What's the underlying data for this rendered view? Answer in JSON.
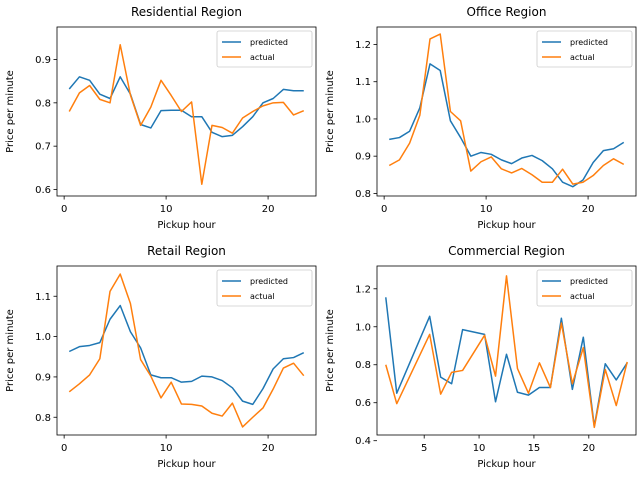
{
  "colors": {
    "predicted": "#1f77b4",
    "actual": "#ff7f0e"
  },
  "chart_data": [
    {
      "type": "line",
      "title": "Residential Region",
      "xlabel": "Pickup hour",
      "ylabel": "Price per minute",
      "xlim": [
        -0.7,
        24.7
      ],
      "ylim": [
        0.585,
        0.975
      ],
      "xticks": [
        0,
        10,
        20
      ],
      "yticks": [
        0.6,
        0.7,
        0.8,
        0.9
      ],
      "ytick_labels": [
        "0.6",
        "0.7",
        "0.8",
        "0.9"
      ],
      "legend_position": "top-right",
      "series": [
        {
          "name": "predicted",
          "color": "#1f77b4",
          "x": [
            0.5,
            1.5,
            2.5,
            3.5,
            4.5,
            5.5,
            6.5,
            7.5,
            8.5,
            9.5,
            10.5,
            11.5,
            12.5,
            13.5,
            14.5,
            15.5,
            16.5,
            17.5,
            18.5,
            19.5,
            20.5,
            21.5,
            22.5,
            23.5
          ],
          "y": [
            0.832,
            0.86,
            0.852,
            0.82,
            0.81,
            0.86,
            0.82,
            0.75,
            0.742,
            0.782,
            0.783,
            0.783,
            0.768,
            0.768,
            0.732,
            0.722,
            0.725,
            0.745,
            0.768,
            0.8,
            0.81,
            0.831,
            0.828,
            0.828
          ]
        },
        {
          "name": "actual",
          "color": "#ff7f0e",
          "x": [
            0.5,
            1.5,
            2.5,
            3.5,
            4.5,
            5.5,
            6.5,
            7.5,
            8.5,
            9.5,
            10.5,
            11.5,
            12.5,
            13.5,
            14.5,
            15.5,
            16.5,
            17.5,
            18.5,
            19.5,
            20.5,
            21.5,
            22.5,
            23.5
          ],
          "y": [
            0.78,
            0.823,
            0.84,
            0.808,
            0.8,
            0.934,
            0.818,
            0.748,
            0.79,
            0.852,
            0.817,
            0.78,
            0.802,
            0.612,
            0.748,
            0.743,
            0.73,
            0.765,
            0.78,
            0.793,
            0.8,
            0.801,
            0.772,
            0.782
          ]
        }
      ]
    },
    {
      "type": "line",
      "title": "Office Region",
      "xlabel": "Pickup hour",
      "ylabel": "Price per minute",
      "xlim": [
        -0.7,
        24.7
      ],
      "ylim": [
        0.793,
        1.247
      ],
      "xticks": [
        0,
        10,
        20
      ],
      "yticks": [
        0.8,
        0.9,
        1.0,
        1.1,
        1.2
      ],
      "ytick_labels": [
        "0.8",
        "0.9",
        "1.0",
        "1.1",
        "1.2"
      ],
      "legend_position": "top-right",
      "series": [
        {
          "name": "predicted",
          "color": "#1f77b4",
          "x": [
            0.5,
            1.5,
            2.5,
            3.5,
            4.5,
            5.5,
            6.5,
            7.5,
            8.5,
            9.5,
            10.5,
            11.5,
            12.5,
            13.5,
            14.5,
            15.5,
            16.5,
            17.5,
            18.5,
            19.5,
            20.5,
            21.5,
            22.5,
            23.5
          ],
          "y": [
            0.945,
            0.95,
            0.967,
            1.03,
            1.148,
            1.13,
            0.995,
            0.95,
            0.9,
            0.91,
            0.905,
            0.89,
            0.88,
            0.895,
            0.902,
            0.888,
            0.866,
            0.83,
            0.818,
            0.836,
            0.883,
            0.915,
            0.92,
            0.937
          ]
        },
        {
          "name": "actual",
          "color": "#ff7f0e",
          "x": [
            0.5,
            1.5,
            2.5,
            3.5,
            4.5,
            5.5,
            6.5,
            7.5,
            8.5,
            9.5,
            10.5,
            11.5,
            12.5,
            13.5,
            14.5,
            15.5,
            16.5,
            17.5,
            18.5,
            19.5,
            20.5,
            21.5,
            22.5,
            23.5
          ],
          "y": [
            0.875,
            0.89,
            0.935,
            1.01,
            1.215,
            1.228,
            1.02,
            0.995,
            0.86,
            0.885,
            0.898,
            0.866,
            0.855,
            0.867,
            0.85,
            0.83,
            0.83,
            0.865,
            0.825,
            0.83,
            0.848,
            0.875,
            0.893,
            0.878
          ]
        }
      ]
    },
    {
      "type": "line",
      "title": "Retail Region",
      "xlabel": "Pickup hour",
      "ylabel": "Price per minute",
      "xlim": [
        -0.7,
        24.7
      ],
      "ylim": [
        0.756,
        1.175
      ],
      "xticks": [
        0,
        10,
        20
      ],
      "yticks": [
        0.8,
        0.9,
        1.0,
        1.1
      ],
      "ytick_labels": [
        "0.8",
        "0.9",
        "1.0",
        "1.1"
      ],
      "legend_position": "top-right",
      "series": [
        {
          "name": "predicted",
          "color": "#1f77b4",
          "x": [
            0.5,
            1.5,
            2.5,
            3.5,
            4.5,
            5.5,
            6.5,
            7.5,
            8.5,
            9.5,
            10.5,
            11.5,
            12.5,
            13.5,
            14.5,
            15.5,
            16.5,
            17.5,
            18.5,
            19.5,
            20.5,
            21.5,
            22.5,
            23.5
          ],
          "y": [
            0.963,
            0.975,
            0.978,
            0.985,
            1.043,
            1.077,
            1.012,
            0.972,
            0.905,
            0.898,
            0.898,
            0.887,
            0.889,
            0.902,
            0.9,
            0.891,
            0.873,
            0.84,
            0.832,
            0.871,
            0.92,
            0.945,
            0.948,
            0.96
          ]
        },
        {
          "name": "actual",
          "color": "#ff7f0e",
          "x": [
            0.5,
            1.5,
            2.5,
            3.5,
            4.5,
            5.5,
            6.5,
            7.5,
            8.5,
            9.5,
            10.5,
            11.5,
            12.5,
            13.5,
            14.5,
            15.5,
            16.5,
            17.5,
            18.5,
            19.5,
            20.5,
            21.5,
            22.5,
            23.5
          ],
          "y": [
            0.863,
            0.883,
            0.905,
            0.945,
            1.112,
            1.155,
            1.082,
            0.943,
            0.902,
            0.848,
            0.887,
            0.833,
            0.832,
            0.828,
            0.81,
            0.803,
            0.835,
            0.776,
            0.8,
            0.823,
            0.87,
            0.922,
            0.934,
            0.903
          ]
        }
      ]
    },
    {
      "type": "line",
      "title": "Commercial Region",
      "xlabel": "Pickup hour",
      "ylabel": "Price per minute",
      "xlim": [
        0.7,
        24.3
      ],
      "ylim": [
        0.43,
        1.32
      ],
      "xticks": [
        5,
        10,
        15,
        20
      ],
      "yticks": [
        0.4,
        0.6,
        0.8,
        1.0,
        1.2
      ],
      "ytick_labels": [
        "0.4",
        "0.6",
        "0.8",
        "1.0",
        "1.2"
      ],
      "legend_position": "top-right",
      "series": [
        {
          "name": "predicted",
          "color": "#1f77b4",
          "x": [
            1.5,
            2.5,
            5.5,
            6.5,
            7.5,
            8.5,
            10.5,
            11.5,
            12.5,
            13.5,
            14.5,
            15.5,
            16.5,
            17.5,
            18.5,
            19.5,
            20.5,
            21.5,
            22.5,
            23.5
          ],
          "y": [
            1.155,
            0.65,
            1.055,
            0.735,
            0.7,
            0.985,
            0.96,
            0.605,
            0.855,
            0.655,
            0.64,
            0.68,
            0.68,
            1.045,
            0.67,
            0.945,
            0.475,
            0.805,
            0.72,
            0.81
          ]
        },
        {
          "name": "actual",
          "color": "#ff7f0e",
          "x": [
            1.5,
            2.5,
            5.5,
            6.5,
            7.5,
            8.5,
            10.5,
            11.5,
            12.5,
            13.5,
            14.5,
            15.5,
            16.5,
            17.5,
            18.5,
            19.5,
            20.5,
            21.5,
            22.5,
            23.5
          ],
          "y": [
            0.8,
            0.595,
            0.96,
            0.645,
            0.76,
            0.77,
            0.955,
            0.74,
            1.268,
            0.78,
            0.65,
            0.81,
            0.68,
            1.02,
            0.7,
            0.89,
            0.47,
            0.775,
            0.585,
            0.815
          ]
        }
      ]
    }
  ]
}
